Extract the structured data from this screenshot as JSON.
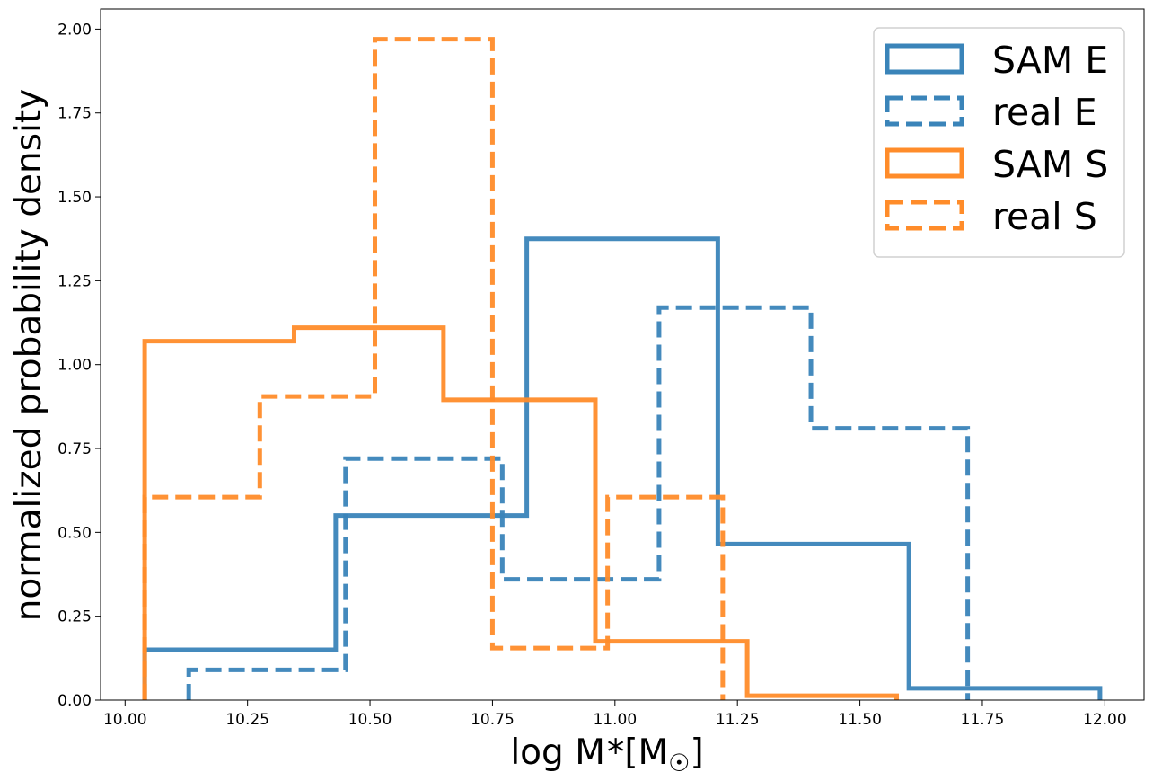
{
  "chart_data": {
    "type": "histogram-step",
    "title": "",
    "xlabel": "log M*[M☉]",
    "xlabel_parts": {
      "main": "log M",
      "star": "*",
      "open": "[M",
      "sub": "☉",
      "close": "]"
    },
    "ylabel": "normalized probability density",
    "xlim": [
      9.95,
      12.08
    ],
    "ylim": [
      0,
      2.06
    ],
    "xticks": [
      10.0,
      10.25,
      10.5,
      10.75,
      11.0,
      11.25,
      11.5,
      11.75,
      12.0
    ],
    "xtick_labels": [
      "10.00",
      "10.25",
      "10.50",
      "10.75",
      "11.00",
      "11.25",
      "11.50",
      "11.75",
      "12.00"
    ],
    "yticks": [
      0,
      0.25,
      0.5,
      0.75,
      1.0,
      1.25,
      1.5,
      1.75,
      2.0
    ],
    "ytick_labels": [
      "0.00",
      "0.25",
      "0.50",
      "0.75",
      "1.00",
      "1.25",
      "1.50",
      "1.75",
      "2.00"
    ],
    "legend_position": "top-right",
    "series": [
      {
        "name": "SAM E",
        "color": "#3a84b9",
        "style": "solid",
        "edges": [
          10.04,
          10.43,
          10.82,
          11.21,
          11.6,
          11.99
        ],
        "values": [
          0.15,
          0.55,
          1.375,
          0.465,
          0.035
        ]
      },
      {
        "name": "real E",
        "color": "#3a84b9",
        "style": "dashed",
        "edges": [
          10.13,
          10.45,
          10.77,
          11.09,
          11.4,
          11.72
        ],
        "values": [
          0.09,
          0.72,
          0.36,
          1.17,
          0.81
        ]
      },
      {
        "name": "SAM S",
        "color": "#ff8c2a",
        "style": "solid",
        "edges": [
          10.04,
          10.345,
          10.65,
          10.96,
          11.27,
          11.575
        ],
        "values": [
          1.07,
          1.11,
          0.895,
          0.175,
          0.013
        ]
      },
      {
        "name": "real S",
        "color": "#ff8c2a",
        "style": "dashed",
        "edges": [
          10.04,
          10.275,
          10.51,
          10.75,
          10.985,
          11.22
        ],
        "values": [
          0.605,
          0.905,
          1.97,
          0.155,
          0.605
        ]
      }
    ]
  }
}
